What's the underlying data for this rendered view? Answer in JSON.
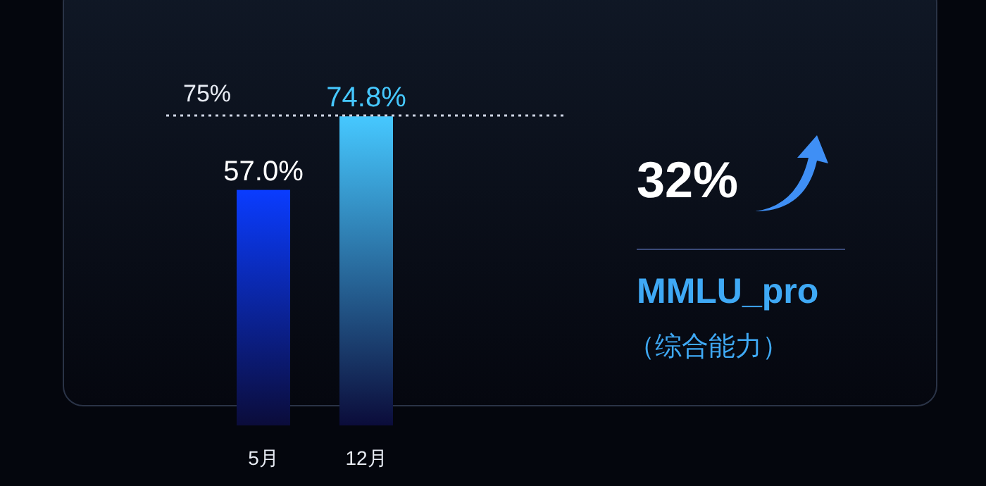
{
  "chart_data": {
    "type": "bar",
    "categories": [
      "5月",
      "12月"
    ],
    "values": [
      57.0,
      74.8
    ],
    "colors": [
      "#0a3cff",
      "#46c8ff"
    ],
    "value_labels": [
      "57.0%",
      "74.8%"
    ],
    "ref_lines": [
      {
        "axis": "y",
        "value": 75,
        "label": "75%",
        "color": "#cfd6e6",
        "line_style": "dotted"
      }
    ],
    "annotations": [
      "32%",
      "MMLU_pro",
      "（综合能力）"
    ]
  }
}
